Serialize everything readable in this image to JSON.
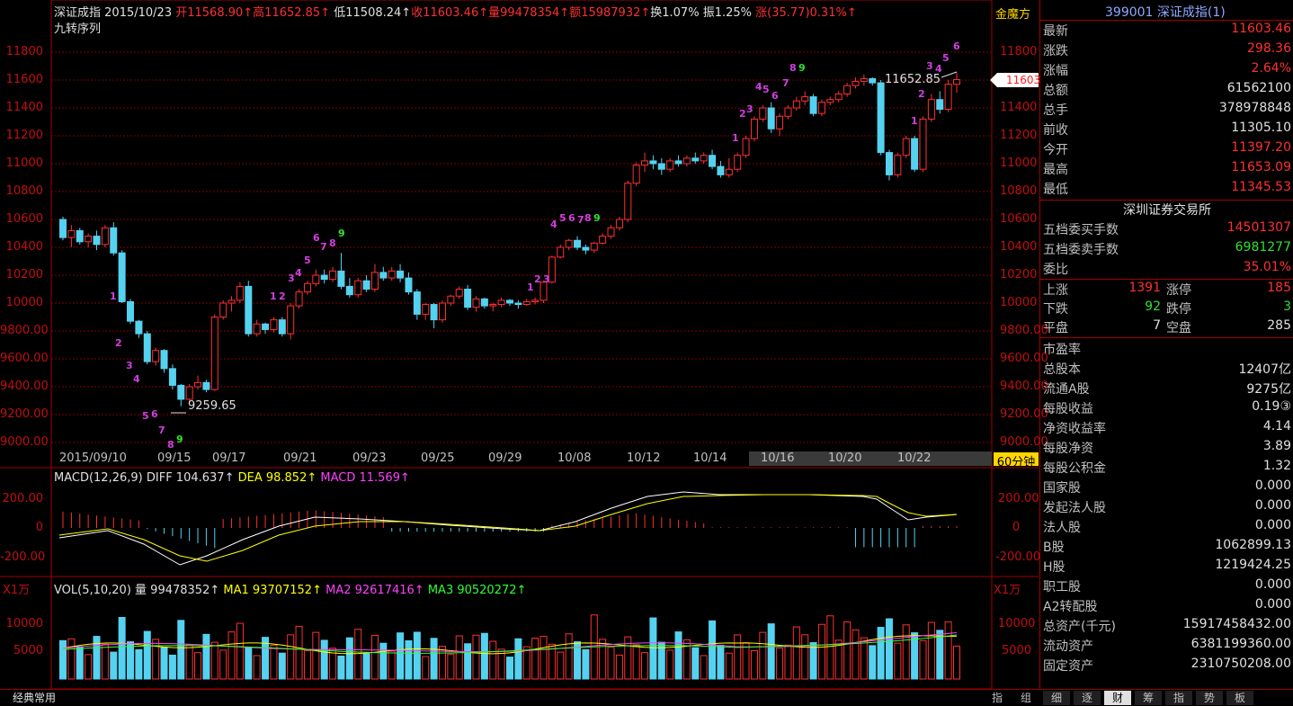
{
  "header": {
    "index_name": "深证成指",
    "date": "2015/10/23",
    "open": "开11568.90↑",
    "high": "高11652.85↑",
    "low": "低11508.24↑",
    "close": "收11603.46↑",
    "volume": "量99478354↑",
    "amount": "额15987932↑",
    "turnover": "换1.07%",
    "amplitude": "振1.25%",
    "change": "涨(35.77)0.31%↑",
    "indicator": "九转序列",
    "logo": "金魔方"
  },
  "price_axis": {
    "left_ticks": [
      "11800",
      "11600",
      "11400",
      "11200",
      "11000",
      "10800",
      "10600",
      "10400",
      "10200",
      "10000",
      "9800.00",
      "9600.00",
      "9400.00",
      "9200.00",
      "9000.00"
    ],
    "right_ticks": [
      "11800",
      "11600",
      "11400",
      "11200",
      "11000",
      "10800",
      "10600",
      "10400",
      "10200",
      "10000",
      "9800.00",
      "9600.00",
      "9400.00",
      "9200.00",
      "9000.00"
    ],
    "current_price_tag": "11603",
    "high_annotation": "11652.85",
    "low_annotation": "9259.65",
    "period_label": "60分钟"
  },
  "date_axis": [
    "2015/09/10",
    "09/15",
    "09/17",
    "09/21",
    "09/23",
    "09/25",
    "09/29",
    "10/08",
    "10/12",
    "10/14",
    "10/16",
    "10/20",
    "10/22"
  ],
  "macd": {
    "title": "MACD(12,26,9)",
    "diff": "DIFF 104.637↑",
    "dea": "DEA 98.852↑",
    "macd": "MACD 11.569↑",
    "ticks_left": [
      "200.00",
      "0",
      "-200.00"
    ],
    "ticks_right": [
      "200.00",
      "0",
      "-200.00"
    ]
  },
  "volume": {
    "unit_left": "X1万",
    "unit_right": "X1万",
    "title": "VOL(5,10,20)",
    "vol": "量 99478352↑",
    "ma1": "MA1 93707152↑",
    "ma2": "MA2 92617416↑",
    "ma3": "MA3 90520272↑",
    "ticks_left": [
      "10000",
      "5000"
    ],
    "ticks_right": [
      "10000",
      "5000"
    ]
  },
  "quote_panel": {
    "title": "399001 深证成指(1)",
    "rows": [
      {
        "label": "最新",
        "value": "11603.46",
        "color": "#ff3030"
      },
      {
        "label": "涨跌",
        "value": "298.36",
        "color": "#ff3030"
      },
      {
        "label": "涨幅",
        "value": "2.64%",
        "color": "#ff3030"
      },
      {
        "label": "总额",
        "value": "61562100",
        "color": "#e0e0e0"
      },
      {
        "label": "总手",
        "value": "378978848",
        "color": "#e0e0e0"
      },
      {
        "label": "前收",
        "value": "11305.10",
        "color": "#e0e0e0"
      },
      {
        "label": "今开",
        "value": "11397.20",
        "color": "#ff3030"
      },
      {
        "label": "最高",
        "value": "11653.09",
        "color": "#ff3030"
      },
      {
        "label": "最低",
        "value": "11345.53",
        "color": "#ff3030"
      }
    ],
    "exchange": "深圳证券交易所",
    "orders": [
      {
        "label": "五档委买手数",
        "value": "14501307",
        "color": "#ff3030"
      },
      {
        "label": "五档委卖手数",
        "value": "6981277",
        "color": "#30e030"
      },
      {
        "label": "委比",
        "value": "35.01%",
        "color": "#ff3030"
      }
    ],
    "breadth": {
      "up_label": "上涨",
      "up": "1391",
      "limit_up_label": "涨停",
      "limit_up": "185",
      "down_label": "下跌",
      "down": "92",
      "limit_down_label": "跌停",
      "limit_down": "3",
      "flat_label": "平盘",
      "flat": "7",
      "empty_label": "空盘",
      "empty": "285"
    },
    "fundamentals": [
      {
        "label": "市盈率",
        "value": ""
      },
      {
        "label": "总股本",
        "value": "12407亿"
      },
      {
        "label": "流通A股",
        "value": "9275亿"
      },
      {
        "label": "每股收益",
        "value": "0.19③"
      },
      {
        "label": "净资收益率",
        "value": "4.14"
      },
      {
        "label": "每股净资",
        "value": "3.89"
      },
      {
        "label": "每股公积金",
        "value": "1.32"
      },
      {
        "label": "国家股",
        "value": "0.000"
      },
      {
        "label": "发起法人股",
        "value": "0.000"
      },
      {
        "label": "法人股",
        "value": "0.000"
      },
      {
        "label": "B股",
        "value": "1062899.13"
      },
      {
        "label": "H股",
        "value": "1219424.25"
      },
      {
        "label": "职工股",
        "value": "0.000"
      },
      {
        "label": "A2转配股",
        "value": "0.000"
      },
      {
        "label": "总资产(千元)",
        "value": "15917458432.00"
      },
      {
        "label": "流动资产",
        "value": "6381199360.00"
      },
      {
        "label": "固定资产",
        "value": "2310750208.00"
      }
    ]
  },
  "bottom_bar": {
    "left_label": "经典常用",
    "side_tabs": [
      "指",
      "组"
    ],
    "tabs": [
      "细",
      "逐",
      "财",
      "筹",
      "指",
      "势",
      "板"
    ]
  },
  "chart_data": {
    "type": "candlestick",
    "ylim": [
      9000,
      11900
    ],
    "candles": [
      [
        10600,
        10620,
        10450,
        10470
      ],
      [
        10470,
        10560,
        10400,
        10520
      ],
      [
        10520,
        10540,
        10420,
        10440
      ],
      [
        10440,
        10500,
        10400,
        10480
      ],
      [
        10480,
        10520,
        10380,
        10420
      ],
      [
        10420,
        10560,
        10400,
        10540
      ],
      [
        10540,
        10580,
        10340,
        10360
      ],
      [
        10360,
        10380,
        10000,
        10010
      ],
      [
        10010,
        10030,
        9850,
        9870
      ],
      [
        9870,
        9880,
        9750,
        9780
      ],
      [
        9780,
        9800,
        9560,
        9580
      ],
      [
        9580,
        9680,
        9550,
        9660
      ],
      [
        9660,
        9670,
        9500,
        9530
      ],
      [
        9530,
        9560,
        9380,
        9410
      ],
      [
        9410,
        9420,
        9260,
        9310
      ],
      [
        9310,
        9420,
        9290,
        9400
      ],
      [
        9400,
        9480,
        9380,
        9430
      ],
      [
        9430,
        9450,
        9360,
        9380
      ],
      [
        9380,
        9920,
        9370,
        9900
      ],
      [
        9900,
        10020,
        9880,
        10000
      ],
      [
        10000,
        10050,
        9940,
        10020
      ],
      [
        10020,
        10150,
        10000,
        10120
      ],
      [
        10120,
        10160,
        9760,
        9780
      ],
      [
        9780,
        9880,
        9760,
        9850
      ],
      [
        9850,
        9860,
        9780,
        9810
      ],
      [
        9810,
        9900,
        9790,
        9880
      ],
      [
        9880,
        9900,
        9760,
        9780
      ],
      [
        9780,
        10000,
        9740,
        9980
      ],
      [
        9980,
        10100,
        9960,
        10080
      ],
      [
        10080,
        10160,
        10060,
        10140
      ],
      [
        10140,
        10240,
        10120,
        10200
      ],
      [
        10200,
        10240,
        10140,
        10170
      ],
      [
        10170,
        10260,
        10150,
        10230
      ],
      [
        10230,
        10360,
        10100,
        10120
      ],
      [
        10120,
        10180,
        10040,
        10060
      ],
      [
        10060,
        10180,
        10040,
        10160
      ],
      [
        10160,
        10200,
        10080,
        10100
      ],
      [
        10100,
        10280,
        10080,
        10220
      ],
      [
        10220,
        10260,
        10160,
        10180
      ],
      [
        10180,
        10260,
        10160,
        10230
      ],
      [
        10230,
        10280,
        10150,
        10180
      ],
      [
        10180,
        10220,
        10060,
        10080
      ],
      [
        10080,
        10100,
        9880,
        9920
      ],
      [
        9920,
        10000,
        9880,
        9990
      ],
      [
        9990,
        10000,
        9820,
        9880
      ],
      [
        9880,
        10020,
        9860,
        10000
      ],
      [
        10000,
        10060,
        9980,
        10050
      ],
      [
        10050,
        10120,
        10030,
        10100
      ],
      [
        10100,
        10130,
        9950,
        9970
      ],
      [
        9970,
        10050,
        9940,
        10030
      ],
      [
        10030,
        10040,
        9960,
        9980
      ],
      [
        9980,
        10000,
        9940,
        9990
      ],
      [
        9990,
        10040,
        9970,
        10020
      ],
      [
        10020,
        10030,
        9980,
        10000
      ],
      [
        10000,
        10020,
        9960,
        9990
      ],
      [
        9990,
        10030,
        9980,
        10010
      ],
      [
        10010,
        10040,
        9990,
        10020
      ],
      [
        10020,
        10160,
        10000,
        10150
      ],
      [
        10150,
        10340,
        10140,
        10330
      ],
      [
        10330,
        10420,
        10320,
        10400
      ],
      [
        10400,
        10460,
        10380,
        10450
      ],
      [
        10450,
        10480,
        10380,
        10400
      ],
      [
        10400,
        10420,
        10350,
        10380
      ],
      [
        10380,
        10440,
        10360,
        10430
      ],
      [
        10430,
        10500,
        10420,
        10480
      ],
      [
        10480,
        10560,
        10460,
        10540
      ],
      [
        10540,
        10620,
        10520,
        10600
      ],
      [
        10600,
        10880,
        10580,
        10860
      ],
      [
        10860,
        11010,
        10840,
        10990
      ],
      [
        10990,
        11080,
        10940,
        11020
      ],
      [
        11020,
        11060,
        10960,
        11000
      ],
      [
        11000,
        11040,
        10920,
        10960
      ],
      [
        10960,
        11040,
        10940,
        11020
      ],
      [
        11020,
        11060,
        10980,
        11000
      ],
      [
        11000,
        11060,
        10980,
        11040
      ],
      [
        11040,
        11080,
        11000,
        11020
      ],
      [
        11020,
        11080,
        11000,
        11060
      ],
      [
        11060,
        11100,
        10960,
        10980
      ],
      [
        10980,
        11020,
        10900,
        10920
      ],
      [
        10920,
        11040,
        10900,
        10960
      ],
      [
        10960,
        11080,
        10940,
        11060
      ],
      [
        11060,
        11200,
        11040,
        11180
      ],
      [
        11180,
        11340,
        11160,
        11320
      ],
      [
        11320,
        11420,
        11300,
        11400
      ],
      [
        11400,
        11440,
        11220,
        11250
      ],
      [
        11250,
        11360,
        11200,
        11340
      ],
      [
        11340,
        11420,
        11320,
        11400
      ],
      [
        11400,
        11480,
        11380,
        11450
      ],
      [
        11450,
        11520,
        11420,
        11480
      ],
      [
        11480,
        11500,
        11340,
        11360
      ],
      [
        11360,
        11460,
        11340,
        11440
      ],
      [
        11440,
        11480,
        11420,
        11460
      ],
      [
        11460,
        11520,
        11440,
        11500
      ],
      [
        11500,
        11580,
        11480,
        11560
      ],
      [
        11560,
        11620,
        11540,
        11590
      ],
      [
        11590,
        11640,
        11560,
        11610
      ],
      [
        11610,
        11620,
        11560,
        11580
      ],
      [
        11580,
        11600,
        11060,
        11080
      ],
      [
        11080,
        11100,
        10880,
        10920
      ],
      [
        10920,
        11080,
        10900,
        11060
      ],
      [
        11060,
        11200,
        11040,
        11180
      ],
      [
        11180,
        11200,
        10940,
        10960
      ],
      [
        10960,
        11340,
        10940,
        11320
      ],
      [
        11320,
        11500,
        11300,
        11460
      ],
      [
        11460,
        11520,
        11360,
        11390
      ],
      [
        11390,
        11600,
        11370,
        11570
      ],
      [
        11570,
        11653,
        11508,
        11603
      ]
    ]
  }
}
